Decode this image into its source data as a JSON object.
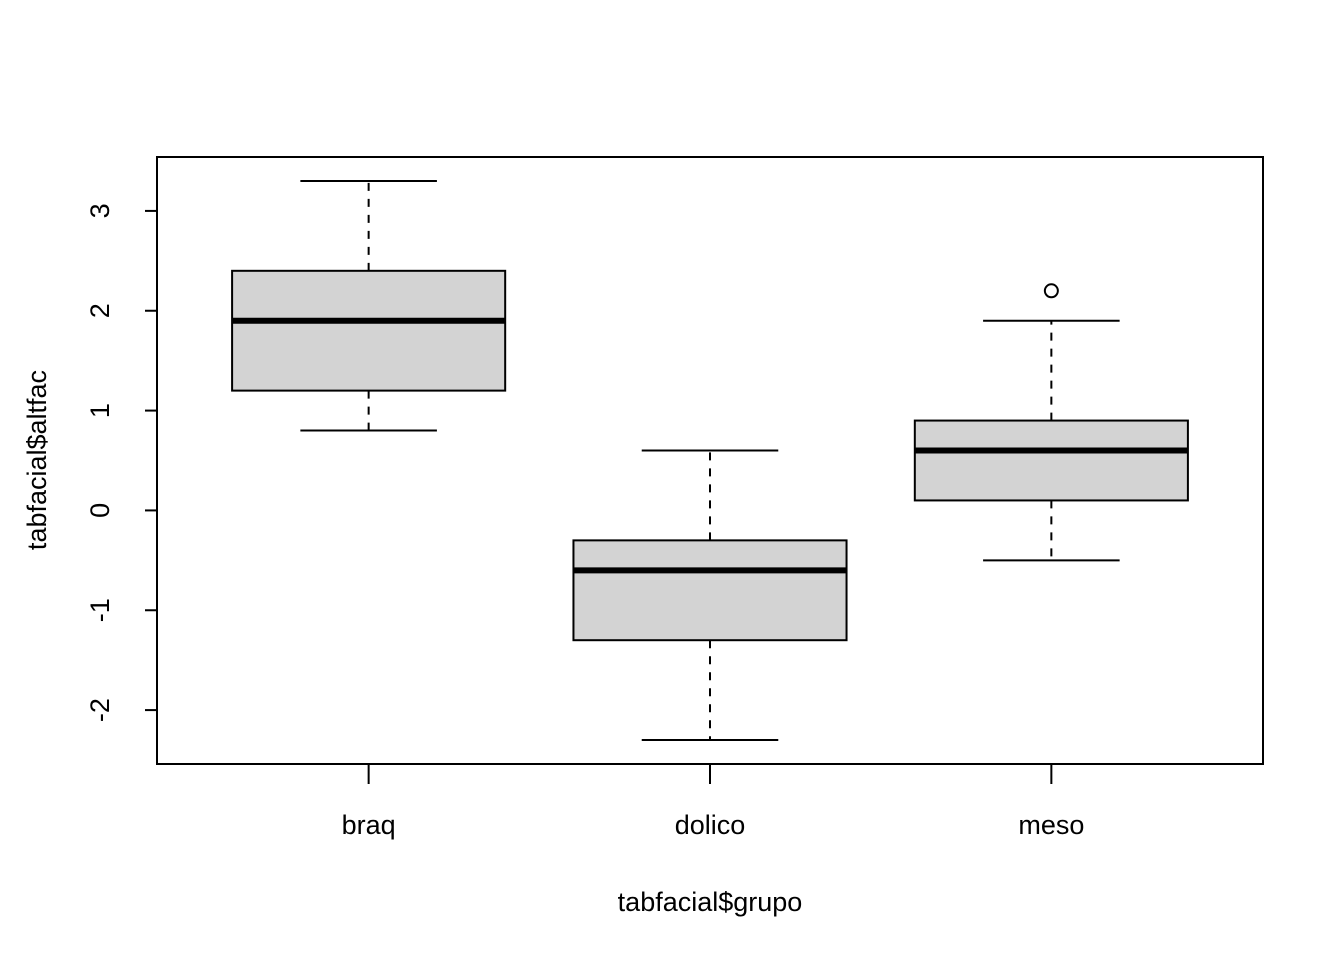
{
  "chart_data": {
    "type": "boxplot",
    "xlabel": "tabfacial$grupo",
    "ylabel": "tabfacial$altfac",
    "ylim": [
      -2.54,
      3.54
    ],
    "y_ticks": [
      -2,
      -1,
      0,
      1,
      2,
      3
    ],
    "y_tick_labels": [
      "-2",
      "-1",
      "0",
      "1",
      "2",
      "3"
    ],
    "categories": [
      "braq",
      "dolico",
      "meso"
    ],
    "box_fill": "#d3d3d3",
    "boxes": [
      {
        "name": "braq",
        "whisker_low": 0.8,
        "q1": 1.2,
        "median": 1.9,
        "q3": 2.4,
        "whisker_high": 3.3,
        "outliers": []
      },
      {
        "name": "dolico",
        "whisker_low": -2.3,
        "q1": -1.3,
        "median": -0.6,
        "q3": -0.3,
        "whisker_high": 0.6,
        "outliers": []
      },
      {
        "name": "meso",
        "whisker_low": -0.5,
        "q1": 0.1,
        "median": 0.6,
        "q3": 0.9,
        "whisker_high": 1.9,
        "outliers": [
          2.2
        ]
      }
    ]
  }
}
